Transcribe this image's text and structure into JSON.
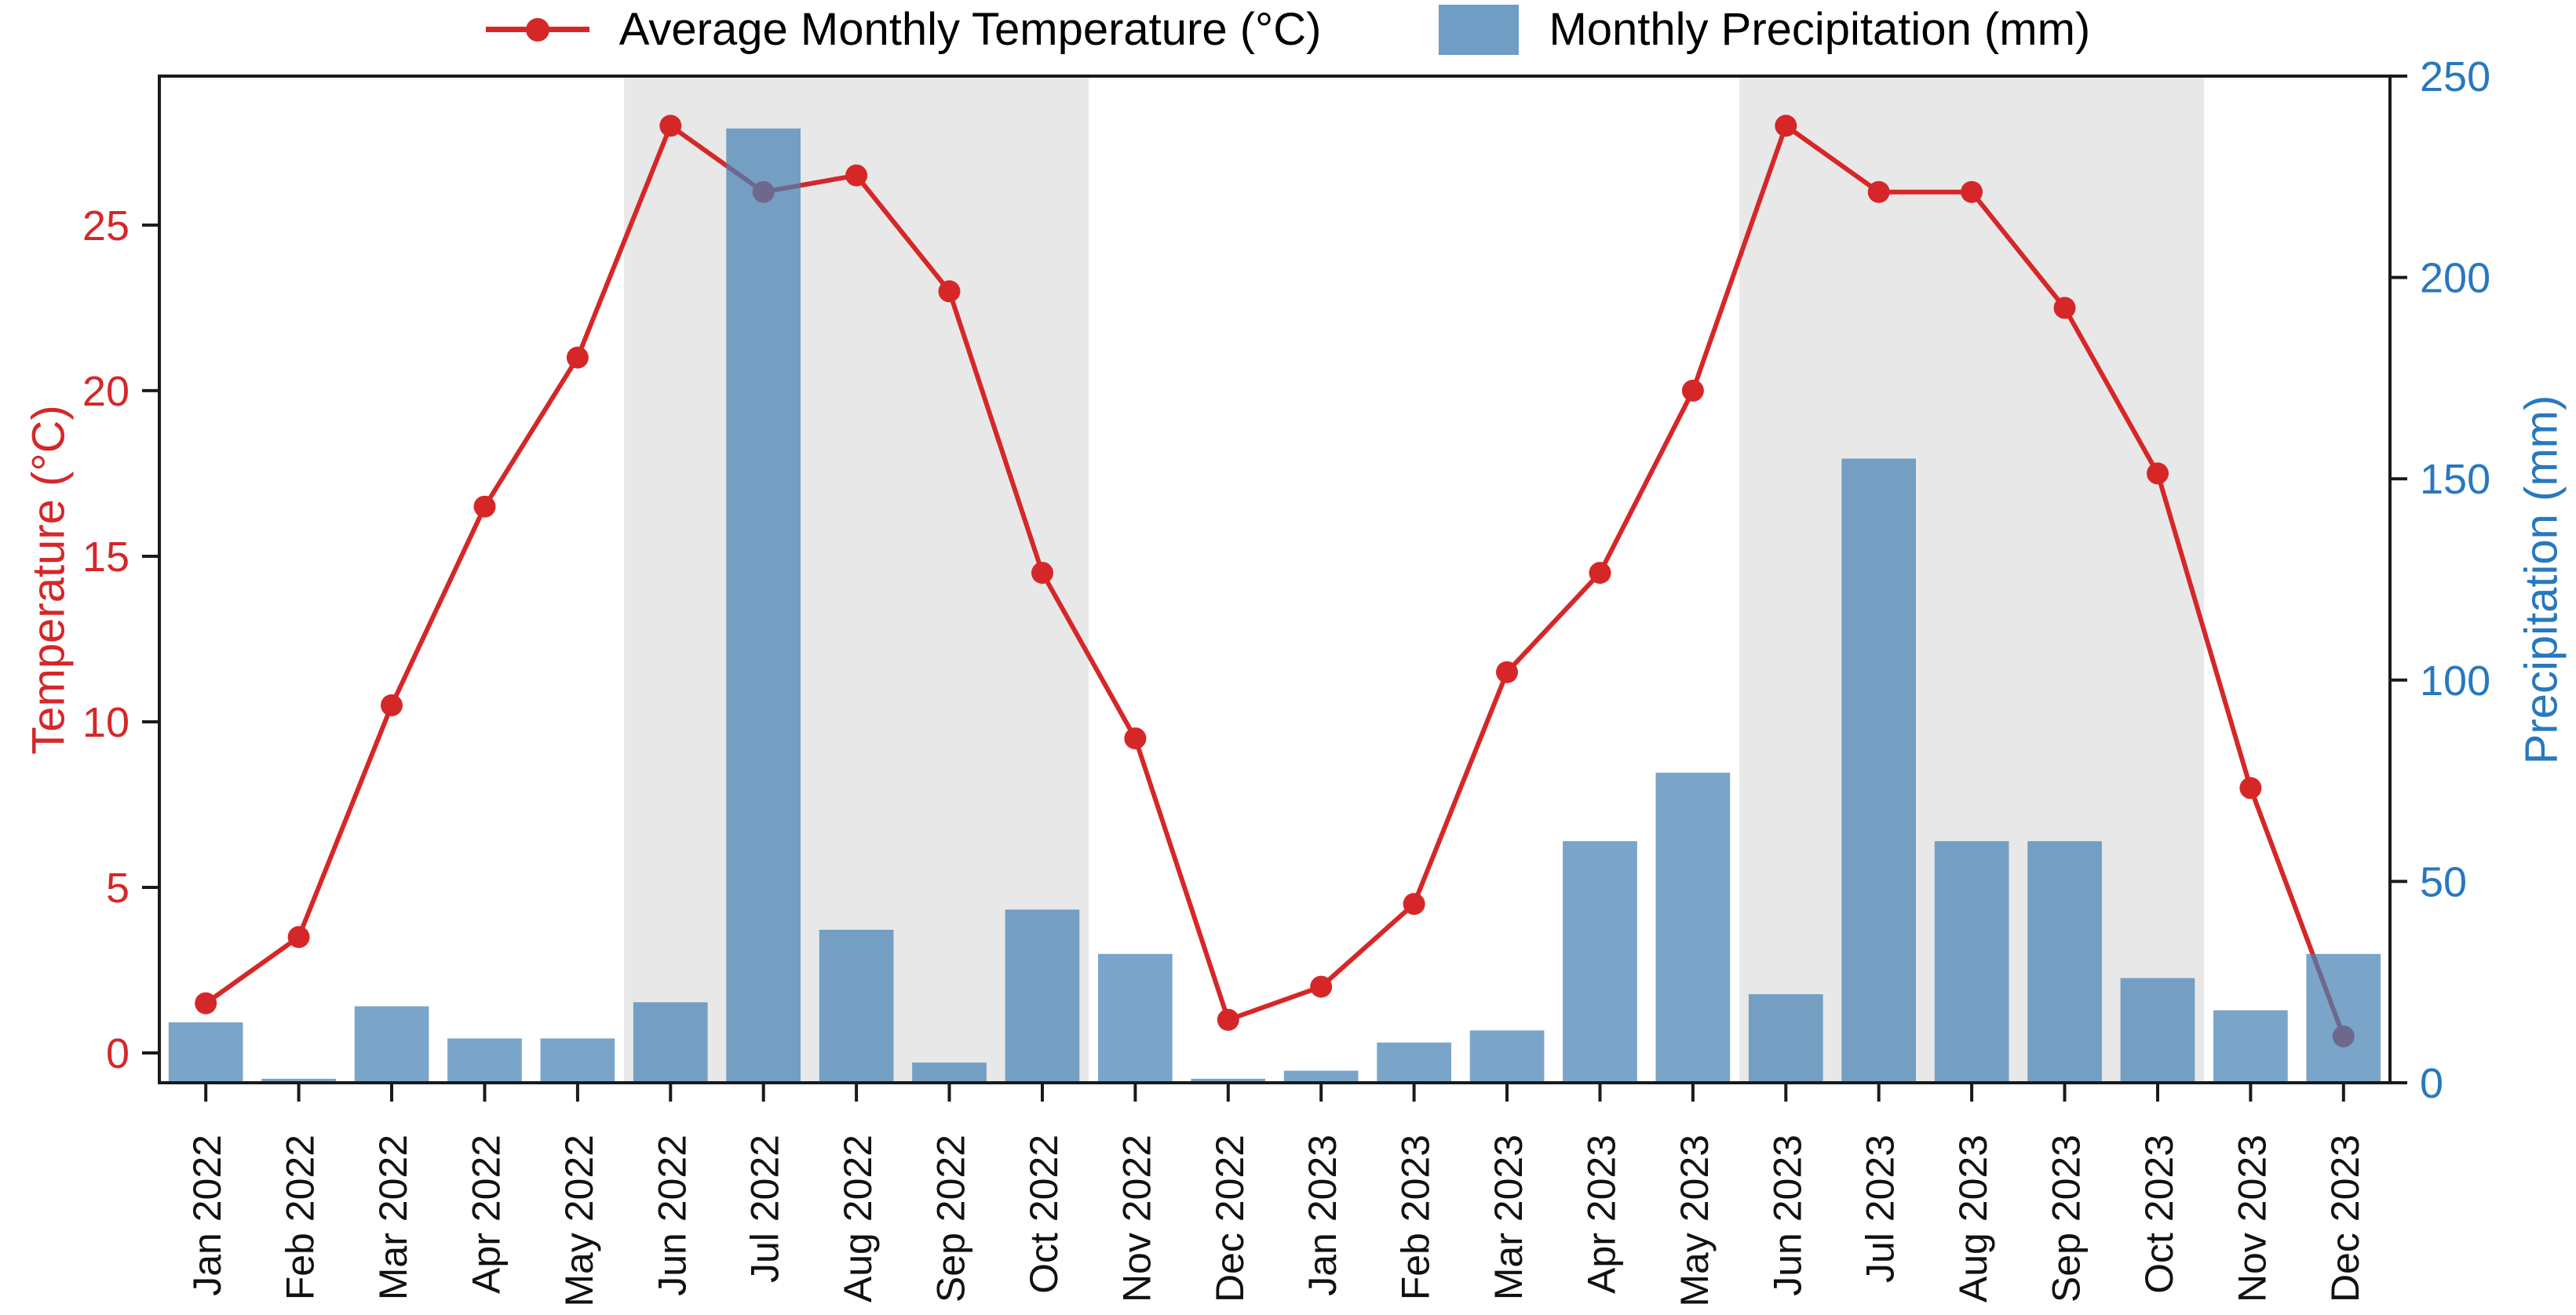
{
  "legend": {
    "temperature_label": "Average Monthly Temperature (°C)",
    "precipitation_label": "Monthly Precipitation (mm)"
  },
  "axes": {
    "left_title": "Temperature (°C)",
    "right_title": "Precipitation (mm)",
    "left_ticks": [
      0,
      5,
      10,
      15,
      20,
      25
    ],
    "right_ticks": [
      0,
      50,
      100,
      150,
      200,
      250
    ]
  },
  "colors": {
    "temperature": "#d62728",
    "precipitation_bar": "rgba(70,130,180,0.72)",
    "right_axis_text": "#2878be",
    "left_axis_text": "#d62728",
    "shading": "#e8e8e8",
    "spine": "#1a1a1a",
    "x_tick_text": "#111111"
  },
  "chart_data": {
    "type": "line+bar",
    "categories": [
      "Jan 2022",
      "Feb 2022",
      "Mar 2022",
      "Apr 2022",
      "May 2022",
      "Jun 2022",
      "Jul 2022",
      "Aug 2022",
      "Sep 2022",
      "Oct 2022",
      "Nov 2022",
      "Dec 2022",
      "Jan 2023",
      "Feb 2023",
      "Mar 2023",
      "Apr 2023",
      "May 2023",
      "Jun 2023",
      "Jul 2023",
      "Aug 2023",
      "Sep 2023",
      "Oct 2023",
      "Nov 2023",
      "Dec 2023"
    ],
    "series": [
      {
        "name": "Average Monthly Temperature (°C)",
        "type": "line",
        "axis": "left",
        "color": "#d62728",
        "values": [
          1.5,
          3.5,
          10.5,
          16.5,
          21,
          28,
          26,
          26.5,
          23,
          14.5,
          9.5,
          1,
          2,
          4.5,
          11.5,
          14.5,
          20,
          28,
          26,
          26,
          22.5,
          17.5,
          8,
          0.5
        ]
      },
      {
        "name": "Monthly Precipitation (mm)",
        "type": "bar",
        "axis": "right",
        "color": "steelblue",
        "values": [
          15,
          1,
          19,
          11,
          11,
          20,
          237,
          38,
          5,
          43,
          32,
          1,
          3,
          10,
          13,
          60,
          77,
          22,
          155,
          60,
          60,
          26,
          18,
          32
        ]
      }
    ],
    "shaded_regions": [
      {
        "from": "Jun 2022",
        "to": "Oct 2022"
      },
      {
        "from": "Jun 2023",
        "to": "Oct 2023"
      }
    ],
    "ylabel_left": "Temperature (°C)",
    "ylabel_right": "Precipitation (mm)",
    "ylim_left": [
      -0.9,
      29.5
    ],
    "ylim_right": [
      0,
      250
    ],
    "grid": false,
    "legend_position": "top"
  }
}
